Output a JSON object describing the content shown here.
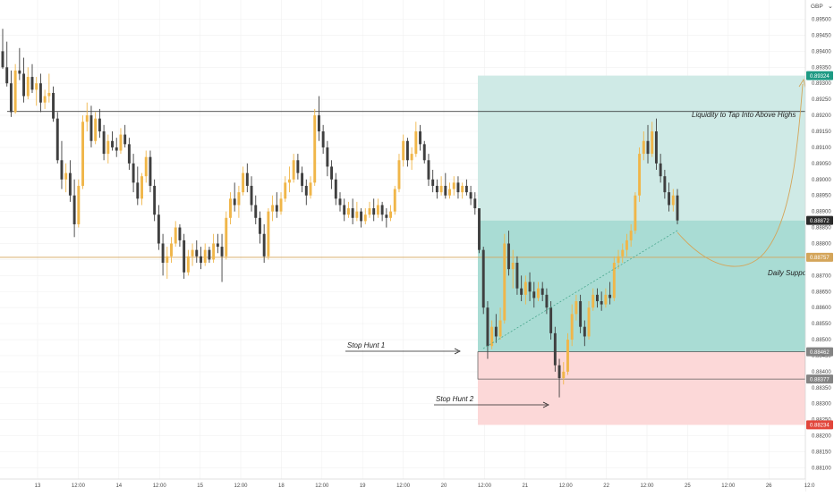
{
  "header": {
    "currency": "GBP",
    "menu_icon": "chevron-down-icon"
  },
  "colors": {
    "bull": "#f0b649",
    "bear": "#3f3f3f",
    "grid": "#f0f0f0",
    "long_zone_light": "#cfeae6",
    "long_zone_dark": "#a9dcd4",
    "stop_zone": "#fcd8d8",
    "support_line": "#d4a55a",
    "label_green": "#1e9a84",
    "label_red": "#e2463b",
    "label_gray": "#848484"
  },
  "chart_data": {
    "type": "candlestick",
    "symbol_currency": "GBP",
    "ylim": [
      0.88065,
      0.8956
    ],
    "y_ticks": [
      "0.89500",
      "0.89450",
      "0.89400",
      "0.89350",
      "0.89300",
      "0.89250",
      "0.89200",
      "0.89150",
      "0.89100",
      "0.89050",
      "0.89000",
      "0.88950",
      "0.88900",
      "0.88850",
      "0.88800",
      "0.88750",
      "0.88700",
      "0.88650",
      "0.88600",
      "0.88550",
      "0.88500",
      "0.88450",
      "0.88400",
      "0.88350",
      "0.88300",
      "0.88250",
      "0.88200",
      "0.88150",
      "0.88100"
    ],
    "x_ticks": [
      "13",
      "12:00",
      "14",
      "12:00",
      "15",
      "12:00",
      "18",
      "12:00",
      "19",
      "12:00",
      "20",
      "12:00",
      "21",
      "12:00",
      "22",
      "12:00",
      "25",
      "12:00",
      "26",
      "12:0"
    ],
    "price_labels": [
      {
        "text": "0.89324",
        "value": 0.89324,
        "kind": "green"
      },
      {
        "text": "0.88872",
        "value": 0.88872,
        "kind": "dark"
      },
      {
        "text": "0.88757",
        "value": 0.88757,
        "kind": "orange"
      },
      {
        "text": "0.88462",
        "value": 0.88462,
        "kind": "gray"
      },
      {
        "text": "0.88377",
        "value": 0.88377,
        "kind": "gray"
      },
      {
        "text": "0.88234",
        "value": 0.88234,
        "kind": "red"
      }
    ],
    "levels": [
      {
        "name": "Highs",
        "value": 0.89212
      },
      {
        "name": "Daily Support",
        "value": 0.88757
      }
    ],
    "zones": {
      "target": 0.89324,
      "entry": 0.88872,
      "stop": 0.88234,
      "inner_support": 0.88462,
      "stop_hunt_level": 0.88377
    },
    "annotations": [
      "Liquidity to Tap Into Above Highs",
      "Daily Support",
      "Stop Hunt 1",
      "Stop Hunt 2"
    ],
    "candles": [
      [
        0.894,
        0.8947,
        0.89345,
        0.8935
      ],
      [
        0.8935,
        0.8943,
        0.8929,
        0.893
      ],
      [
        0.893,
        0.8934,
        0.89195,
        0.8921
      ],
      [
        0.8921,
        0.8936,
        0.89205,
        0.8934
      ],
      [
        0.8934,
        0.8941,
        0.8931,
        0.8933
      ],
      [
        0.8933,
        0.8938,
        0.8924,
        0.8926
      ],
      [
        0.8926,
        0.8935,
        0.8925,
        0.8932
      ],
      [
        0.8932,
        0.8936,
        0.8927,
        0.8928
      ],
      [
        0.8928,
        0.8932,
        0.8923,
        0.893
      ],
      [
        0.893,
        0.8933,
        0.8921,
        0.8924
      ],
      [
        0.8924,
        0.8928,
        0.8922,
        0.8926
      ],
      [
        0.8926,
        0.8933,
        0.8924,
        0.8927
      ],
      [
        0.8927,
        0.8929,
        0.8918,
        0.8919
      ],
      [
        0.8919,
        0.8921,
        0.8905,
        0.8906
      ],
      [
        0.8906,
        0.8912,
        0.8897,
        0.89
      ],
      [
        0.89,
        0.8905,
        0.8896,
        0.8902
      ],
      [
        0.8902,
        0.8906,
        0.8893,
        0.8895
      ],
      [
        0.8895,
        0.89,
        0.8882,
        0.8886
      ],
      [
        0.8886,
        0.89,
        0.8885,
        0.8898
      ],
      [
        0.8898,
        0.892,
        0.8897,
        0.8918
      ],
      [
        0.8918,
        0.8924,
        0.8915,
        0.892
      ],
      [
        0.892,
        0.8923,
        0.891,
        0.8912
      ],
      [
        0.8912,
        0.8921,
        0.8911,
        0.8919
      ],
      [
        0.8919,
        0.8922,
        0.8913,
        0.8915
      ],
      [
        0.8915,
        0.8917,
        0.8906,
        0.8908
      ],
      [
        0.8908,
        0.8914,
        0.8905,
        0.8912
      ],
      [
        0.8912,
        0.8915,
        0.8909,
        0.891
      ],
      [
        0.891,
        0.8913,
        0.8907,
        0.8909
      ],
      [
        0.8909,
        0.8916,
        0.8908,
        0.8914
      ],
      [
        0.8914,
        0.8917,
        0.891,
        0.8911
      ],
      [
        0.8911,
        0.8913,
        0.8903,
        0.8905
      ],
      [
        0.8905,
        0.8908,
        0.8896,
        0.8899
      ],
      [
        0.8899,
        0.8904,
        0.8892,
        0.8894
      ],
      [
        0.8894,
        0.8902,
        0.8892,
        0.8901
      ],
      [
        0.8901,
        0.8909,
        0.8899,
        0.8907
      ],
      [
        0.8907,
        0.8909,
        0.8896,
        0.8898
      ],
      [
        0.8898,
        0.89,
        0.8887,
        0.8889
      ],
      [
        0.8889,
        0.8892,
        0.8878,
        0.888
      ],
      [
        0.888,
        0.8883,
        0.887,
        0.8874
      ],
      [
        0.8874,
        0.8879,
        0.8869,
        0.8876
      ],
      [
        0.8876,
        0.8882,
        0.8874,
        0.888
      ],
      [
        0.888,
        0.8887,
        0.8879,
        0.8885
      ],
      [
        0.8885,
        0.8886,
        0.8879,
        0.8881
      ],
      [
        0.8881,
        0.8883,
        0.8869,
        0.8871
      ],
      [
        0.8871,
        0.8878,
        0.887,
        0.8876
      ],
      [
        0.8876,
        0.888,
        0.8873,
        0.8878
      ],
      [
        0.8878,
        0.8881,
        0.8874,
        0.8876
      ],
      [
        0.8876,
        0.8879,
        0.8872,
        0.8874
      ],
      [
        0.8874,
        0.888,
        0.8873,
        0.8878
      ],
      [
        0.8878,
        0.8879,
        0.8874,
        0.8875
      ],
      [
        0.8875,
        0.8883,
        0.8874,
        0.888
      ],
      [
        0.888,
        0.8883,
        0.8877,
        0.8879
      ],
      [
        0.8879,
        0.8883,
        0.8868,
        0.8876
      ],
      [
        0.8876,
        0.889,
        0.8875,
        0.8888
      ],
      [
        0.8888,
        0.8896,
        0.8886,
        0.8894
      ],
      [
        0.8894,
        0.8899,
        0.889,
        0.8892
      ],
      [
        0.8892,
        0.8898,
        0.8888,
        0.8896
      ],
      [
        0.8896,
        0.8904,
        0.8895,
        0.8902
      ],
      [
        0.8902,
        0.8905,
        0.8896,
        0.8898
      ],
      [
        0.8898,
        0.8901,
        0.889,
        0.8892
      ],
      [
        0.8892,
        0.8895,
        0.8886,
        0.8888
      ],
      [
        0.8888,
        0.889,
        0.888,
        0.8883
      ],
      [
        0.8883,
        0.8886,
        0.8874,
        0.8876
      ],
      [
        0.8876,
        0.8891,
        0.8875,
        0.889
      ],
      [
        0.889,
        0.8895,
        0.8887,
        0.8892
      ],
      [
        0.8892,
        0.8896,
        0.8888,
        0.889
      ],
      [
        0.889,
        0.8896,
        0.8889,
        0.8894
      ],
      [
        0.8894,
        0.8901,
        0.8893,
        0.8899
      ],
      [
        0.8899,
        0.8904,
        0.8896,
        0.89
      ],
      [
        0.89,
        0.8908,
        0.8899,
        0.8906
      ],
      [
        0.8906,
        0.8908,
        0.89,
        0.8902
      ],
      [
        0.8902,
        0.8904,
        0.8896,
        0.8898
      ],
      [
        0.8898,
        0.89,
        0.8892,
        0.8895
      ],
      [
        0.8895,
        0.8901,
        0.8894,
        0.8899
      ],
      [
        0.8899,
        0.8922,
        0.8898,
        0.892
      ],
      [
        0.892,
        0.8926,
        0.8912,
        0.8915
      ],
      [
        0.8915,
        0.8917,
        0.8908,
        0.891
      ],
      [
        0.891,
        0.8912,
        0.8901,
        0.8904
      ],
      [
        0.8904,
        0.8906,
        0.8897,
        0.89
      ],
      [
        0.89,
        0.8902,
        0.8892,
        0.8894
      ],
      [
        0.8894,
        0.8896,
        0.889,
        0.8892
      ],
      [
        0.8892,
        0.8894,
        0.8887,
        0.8889
      ],
      [
        0.8889,
        0.8893,
        0.8888,
        0.8891
      ],
      [
        0.8891,
        0.8894,
        0.8886,
        0.8888
      ],
      [
        0.8888,
        0.8893,
        0.8887,
        0.889
      ],
      [
        0.889,
        0.8891,
        0.8885,
        0.8887
      ],
      [
        0.8887,
        0.8891,
        0.8886,
        0.8889
      ],
      [
        0.8889,
        0.8893,
        0.8888,
        0.8891
      ],
      [
        0.8891,
        0.8894,
        0.8887,
        0.8889
      ],
      [
        0.8889,
        0.8894,
        0.8888,
        0.8892
      ],
      [
        0.8892,
        0.8893,
        0.8887,
        0.8889
      ],
      [
        0.8889,
        0.8891,
        0.8885,
        0.8888
      ],
      [
        0.8888,
        0.8892,
        0.8887,
        0.889
      ],
      [
        0.889,
        0.8898,
        0.8889,
        0.8897
      ],
      [
        0.8897,
        0.8908,
        0.8896,
        0.8906
      ],
      [
        0.8906,
        0.8914,
        0.8904,
        0.8912
      ],
      [
        0.8912,
        0.8913,
        0.8904,
        0.8906
      ],
      [
        0.8906,
        0.891,
        0.8903,
        0.8908
      ],
      [
        0.8908,
        0.8918,
        0.8907,
        0.8915
      ],
      [
        0.8915,
        0.8917,
        0.8909,
        0.8911
      ],
      [
        0.8911,
        0.8912,
        0.8905,
        0.8906
      ],
      [
        0.8906,
        0.8908,
        0.8898,
        0.89
      ],
      [
        0.89,
        0.8903,
        0.8896,
        0.8898
      ],
      [
        0.8898,
        0.89,
        0.8894,
        0.8896
      ],
      [
        0.8896,
        0.8901,
        0.8895,
        0.8898
      ],
      [
        0.8898,
        0.8902,
        0.8894,
        0.8895
      ],
      [
        0.8895,
        0.8899,
        0.8894,
        0.8897
      ],
      [
        0.8897,
        0.8901,
        0.8895,
        0.8899
      ],
      [
        0.8899,
        0.8901,
        0.8894,
        0.8896
      ],
      [
        0.8896,
        0.8899,
        0.8894,
        0.8898
      ],
      [
        0.8898,
        0.89,
        0.8895,
        0.8896
      ],
      [
        0.8896,
        0.8898,
        0.8892,
        0.8894
      ],
      [
        0.8894,
        0.8896,
        0.8889,
        0.8891
      ],
      [
        0.8891,
        0.889,
        0.8877,
        0.8878
      ],
      [
        0.8878,
        0.8879,
        0.8858,
        0.886
      ],
      [
        0.886,
        0.8862,
        0.8844,
        0.8848
      ],
      [
        0.8848,
        0.8856,
        0.8847,
        0.8854
      ],
      [
        0.8854,
        0.8858,
        0.8849,
        0.8851
      ],
      [
        0.8851,
        0.886,
        0.885,
        0.8856
      ],
      [
        0.8856,
        0.8883,
        0.8855,
        0.888
      ],
      [
        0.888,
        0.8884,
        0.887,
        0.8872
      ],
      [
        0.8872,
        0.8878,
        0.8866,
        0.8874
      ],
      [
        0.8874,
        0.8876,
        0.8864,
        0.8866
      ],
      [
        0.8866,
        0.887,
        0.8862,
        0.8864
      ],
      [
        0.8864,
        0.887,
        0.8861,
        0.8868
      ],
      [
        0.8868,
        0.8871,
        0.8862,
        0.8865
      ],
      [
        0.8865,
        0.8868,
        0.886,
        0.8863
      ],
      [
        0.8863,
        0.8868,
        0.8862,
        0.8866
      ],
      [
        0.8866,
        0.8868,
        0.8862,
        0.8864
      ],
      [
        0.8864,
        0.8866,
        0.8858,
        0.886
      ],
      [
        0.886,
        0.8862,
        0.885,
        0.8852
      ],
      [
        0.8852,
        0.8854,
        0.884,
        0.8842
      ],
      [
        0.8842,
        0.8844,
        0.8832,
        0.8838
      ],
      [
        0.8838,
        0.8843,
        0.8836,
        0.884
      ],
      [
        0.884,
        0.8852,
        0.8839,
        0.885
      ],
      [
        0.885,
        0.8861,
        0.8848,
        0.8858
      ],
      [
        0.8858,
        0.8864,
        0.8856,
        0.8862
      ],
      [
        0.8862,
        0.8864,
        0.8852,
        0.8854
      ],
      [
        0.8854,
        0.8856,
        0.8848,
        0.8851
      ],
      [
        0.8851,
        0.8862,
        0.885,
        0.886
      ],
      [
        0.886,
        0.8866,
        0.8859,
        0.8864
      ],
      [
        0.8864,
        0.8866,
        0.886,
        0.8862
      ],
      [
        0.8862,
        0.8865,
        0.8859,
        0.8861
      ],
      [
        0.8861,
        0.8866,
        0.886,
        0.8864
      ],
      [
        0.8864,
        0.8868,
        0.8861,
        0.8863
      ],
      [
        0.8863,
        0.8876,
        0.8862,
        0.8874
      ],
      [
        0.8874,
        0.8878,
        0.8872,
        0.8876
      ],
      [
        0.8876,
        0.888,
        0.8874,
        0.8878
      ],
      [
        0.8878,
        0.8883,
        0.8876,
        0.8881
      ],
      [
        0.8881,
        0.8886,
        0.8879,
        0.8884
      ],
      [
        0.8884,
        0.8896,
        0.8883,
        0.8895
      ],
      [
        0.8895,
        0.891,
        0.8893,
        0.8908
      ],
      [
        0.8908,
        0.8915,
        0.8906,
        0.8912
      ],
      [
        0.8912,
        0.8917,
        0.8905,
        0.8908
      ],
      [
        0.8908,
        0.8918,
        0.8907,
        0.8915
      ],
      [
        0.8915,
        0.8919,
        0.8903,
        0.8905
      ],
      [
        0.8905,
        0.8908,
        0.8899,
        0.8901
      ],
      [
        0.8901,
        0.8903,
        0.8894,
        0.8896
      ],
      [
        0.8896,
        0.8899,
        0.889,
        0.8892
      ],
      [
        0.8892,
        0.8897,
        0.889,
        0.8895
      ],
      [
        0.8895,
        0.8897,
        0.8886,
        0.88872
      ]
    ]
  }
}
